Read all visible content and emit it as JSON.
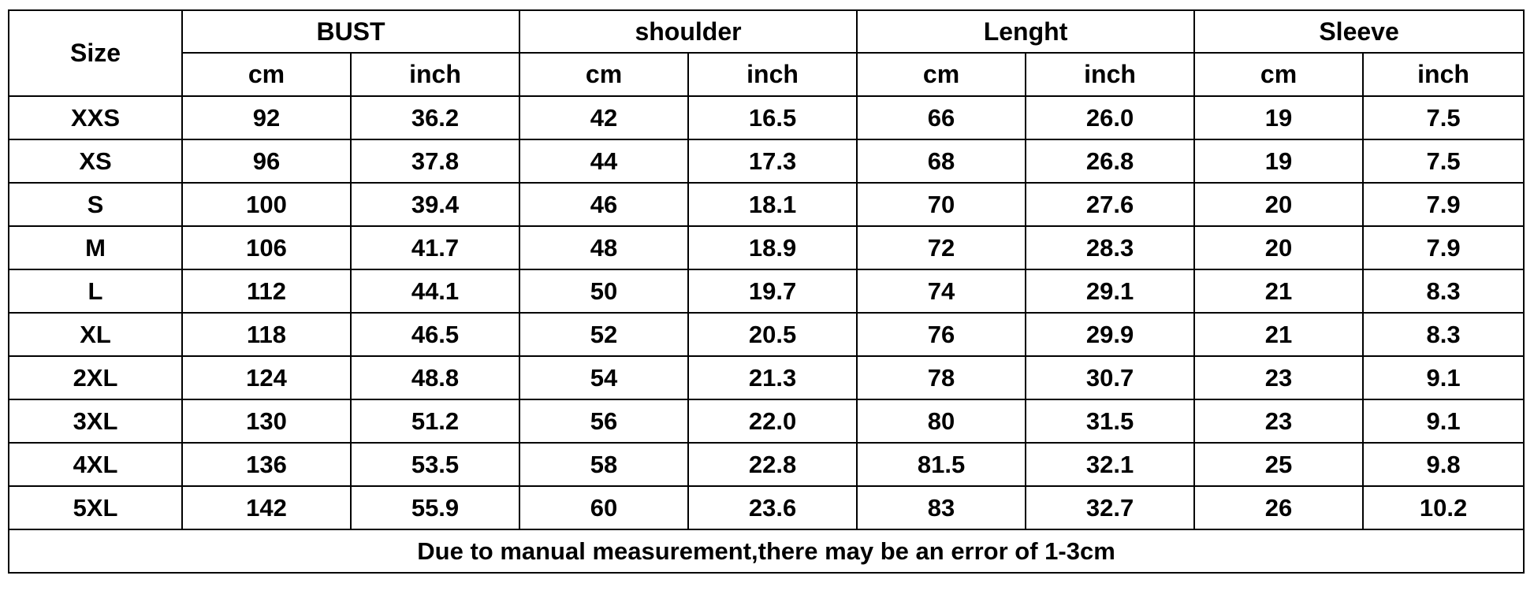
{
  "chart_data": {
    "type": "table",
    "corner_header": "Size",
    "groups": [
      {
        "label": "BUST"
      },
      {
        "label": "shoulder"
      },
      {
        "label": "Lenght"
      },
      {
        "label": "Sleeve"
      }
    ],
    "units": [
      "cm",
      "inch"
    ],
    "columns": [
      "Size",
      "BUST cm",
      "BUST inch",
      "shoulder cm",
      "shoulder inch",
      "Lenght cm",
      "Lenght inch",
      "Sleeve cm",
      "Sleeve inch"
    ],
    "rows": [
      {
        "size": "XXS",
        "values": [
          "92",
          "36.2",
          "42",
          "16.5",
          "66",
          "26.0",
          "19",
          "7.5"
        ]
      },
      {
        "size": "XS",
        "values": [
          "96",
          "37.8",
          "44",
          "17.3",
          "68",
          "26.8",
          "19",
          "7.5"
        ]
      },
      {
        "size": "S",
        "values": [
          "100",
          "39.4",
          "46",
          "18.1",
          "70",
          "27.6",
          "20",
          "7.9"
        ]
      },
      {
        "size": "M",
        "values": [
          "106",
          "41.7",
          "48",
          "18.9",
          "72",
          "28.3",
          "20",
          "7.9"
        ]
      },
      {
        "size": "L",
        "values": [
          "112",
          "44.1",
          "50",
          "19.7",
          "74",
          "29.1",
          "21",
          "8.3"
        ]
      },
      {
        "size": "XL",
        "values": [
          "118",
          "46.5",
          "52",
          "20.5",
          "76",
          "29.9",
          "21",
          "8.3"
        ]
      },
      {
        "size": "2XL",
        "values": [
          "124",
          "48.8",
          "54",
          "21.3",
          "78",
          "30.7",
          "23",
          "9.1"
        ]
      },
      {
        "size": "3XL",
        "values": [
          "130",
          "51.2",
          "56",
          "22.0",
          "80",
          "31.5",
          "23",
          "9.1"
        ]
      },
      {
        "size": "4XL",
        "values": [
          "136",
          "53.5",
          "58",
          "22.8",
          "81.5",
          "32.1",
          "25",
          "9.8"
        ]
      },
      {
        "size": "5XL",
        "values": [
          "142",
          "55.9",
          "60",
          "23.6",
          "83",
          "32.7",
          "26",
          "10.2"
        ]
      }
    ],
    "note": "Due to manual measurement,there may be an error of 1-3cm"
  },
  "colors": {
    "background": "#ffffff",
    "border": "#000000",
    "text": "#000000"
  }
}
